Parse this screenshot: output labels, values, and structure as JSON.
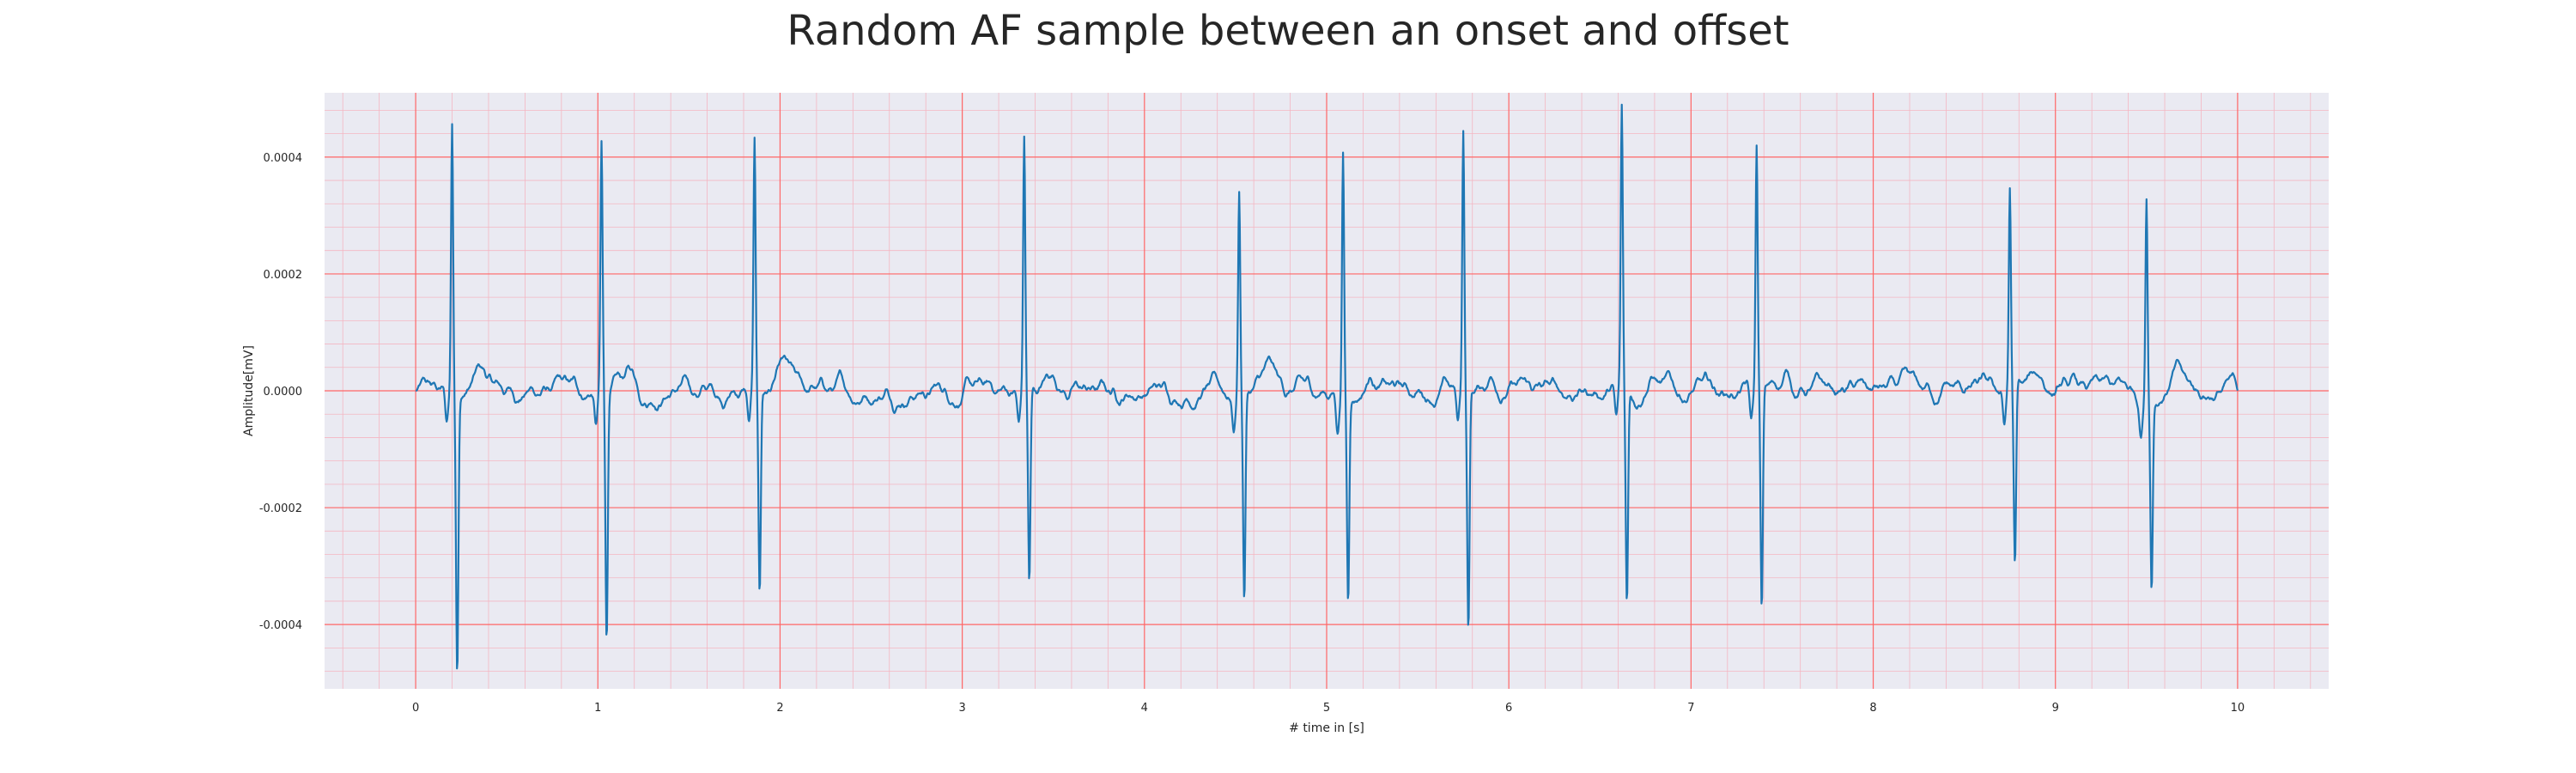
{
  "chart_data": {
    "type": "line",
    "title": "Random AF sample between an onset and offset",
    "xlabel": "# time in [s]",
    "ylabel": "Amplitude[mV]",
    "xlim": [
      -0.5,
      10.5
    ],
    "ylim": [
      -0.00051,
      0.00051
    ],
    "x_ticks": [
      0,
      1,
      2,
      3,
      4,
      5,
      6,
      7,
      8,
      9,
      10
    ],
    "x_tick_labels": [
      "0",
      "1",
      "2",
      "3",
      "4",
      "5",
      "6",
      "7",
      "8",
      "9",
      "10"
    ],
    "y_ticks": [
      0.0004,
      0.0002,
      0.0,
      -0.0002,
      -0.0004
    ],
    "y_tick_labels": [
      "0.0004",
      "0.0002",
      "0.0000",
      "-0.0002",
      "-0.0004"
    ],
    "grid": true,
    "minor_grid": true,
    "colors": {
      "plot_background": "#eaeaf2",
      "major_grid": "#ff6666",
      "minor_grid": "#f4b6c2",
      "line": "#1f77b4"
    },
    "series": [
      {
        "peaks": [
          {
            "t": 0.2,
            "max": 0.00046,
            "min": -0.00046
          },
          {
            "t": 1.02,
            "max": 0.00041,
            "min": -0.00043
          },
          {
            "t": 1.86,
            "max": 0.00041,
            "min": -0.00035
          },
          {
            "t": 3.34,
            "max": 0.00043,
            "min": -0.00034
          },
          {
            "t": 4.52,
            "max": 0.00035,
            "min": -0.00035
          },
          {
            "t": 5.09,
            "max": 0.00042,
            "min": -0.00036
          },
          {
            "t": 5.75,
            "max": 0.00045,
            "min": -0.00041
          },
          {
            "t": 6.62,
            "max": 0.00047,
            "min": -0.00037
          },
          {
            "t": 7.36,
            "max": 0.00041,
            "min": -0.00039
          },
          {
            "t": 8.75,
            "max": 0.00034,
            "min": -0.00031
          },
          {
            "t": 9.5,
            "max": 0.00035,
            "min": -0.00032
          }
        ],
        "baseline_amplitude": 4e-05,
        "t_range": [
          0,
          10
        ]
      }
    ]
  }
}
